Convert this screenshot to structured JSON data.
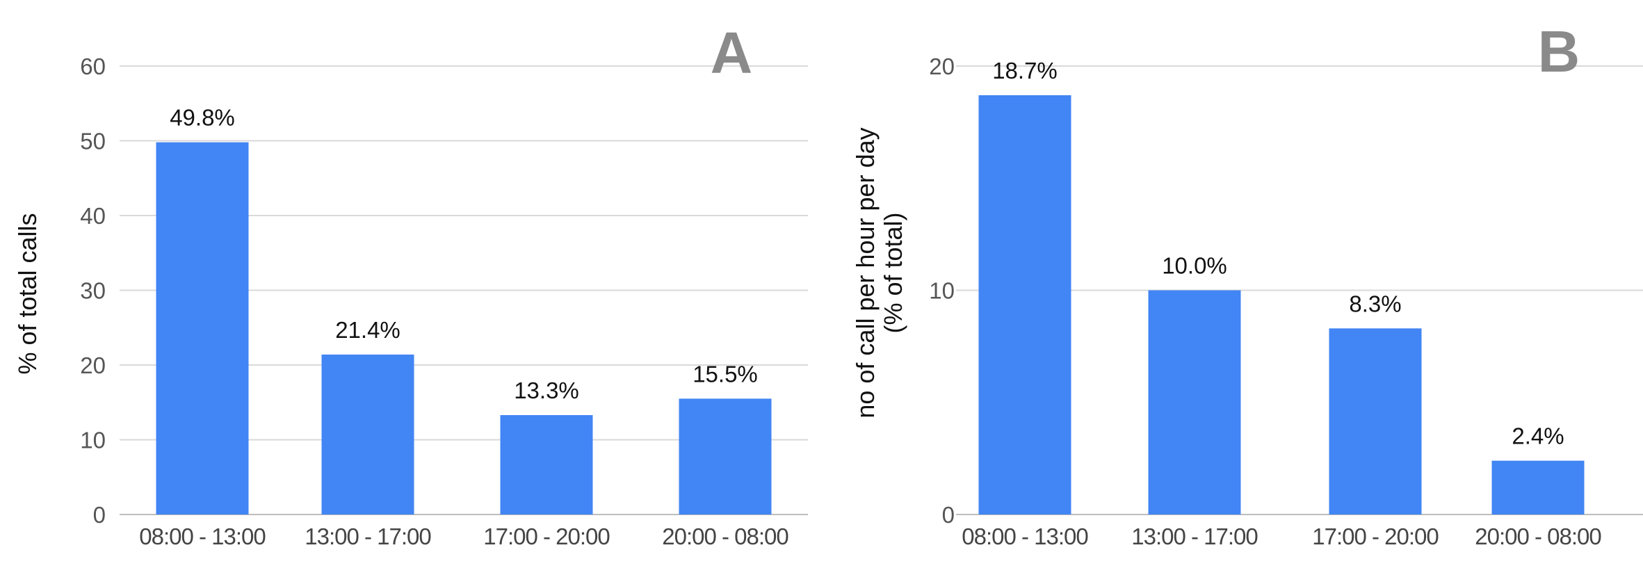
{
  "chart_data": [
    {
      "type": "bar",
      "panel_letter": "A",
      "categories": [
        "08:00 - 13:00",
        "13:00 - 17:00",
        "17:00 - 20:00",
        "20:00 - 08:00"
      ],
      "values": [
        49.8,
        21.4,
        13.3,
        15.5
      ],
      "data_labels": [
        "49.8%",
        "21.4%",
        "13.3%",
        "15.5%"
      ],
      "ylabel": "% of total calls",
      "ylim": [
        0,
        60
      ],
      "yticks": [
        0,
        10,
        20,
        30,
        40,
        50,
        60
      ],
      "grid": true,
      "bar_color": "#4285F4",
      "grid_color": "#d9d9d9"
    },
    {
      "type": "bar",
      "panel_letter": "B",
      "categories": [
        "08:00 - 13:00",
        "13:00 - 17:00",
        "17:00 - 20:00",
        "20:00 - 08:00"
      ],
      "values": [
        18.7,
        10.0,
        8.3,
        2.4
      ],
      "data_labels": [
        "18.7%",
        "10.0%",
        "8.3%",
        "2.4%"
      ],
      "ylabel_lines": [
        "no of call per hour per day",
        "(% of total)"
      ],
      "ylim": [
        0,
        20
      ],
      "yticks": [
        0,
        10,
        20
      ],
      "grid": true,
      "bar_color": "#4285F4",
      "grid_color": "#d9d9d9"
    }
  ]
}
